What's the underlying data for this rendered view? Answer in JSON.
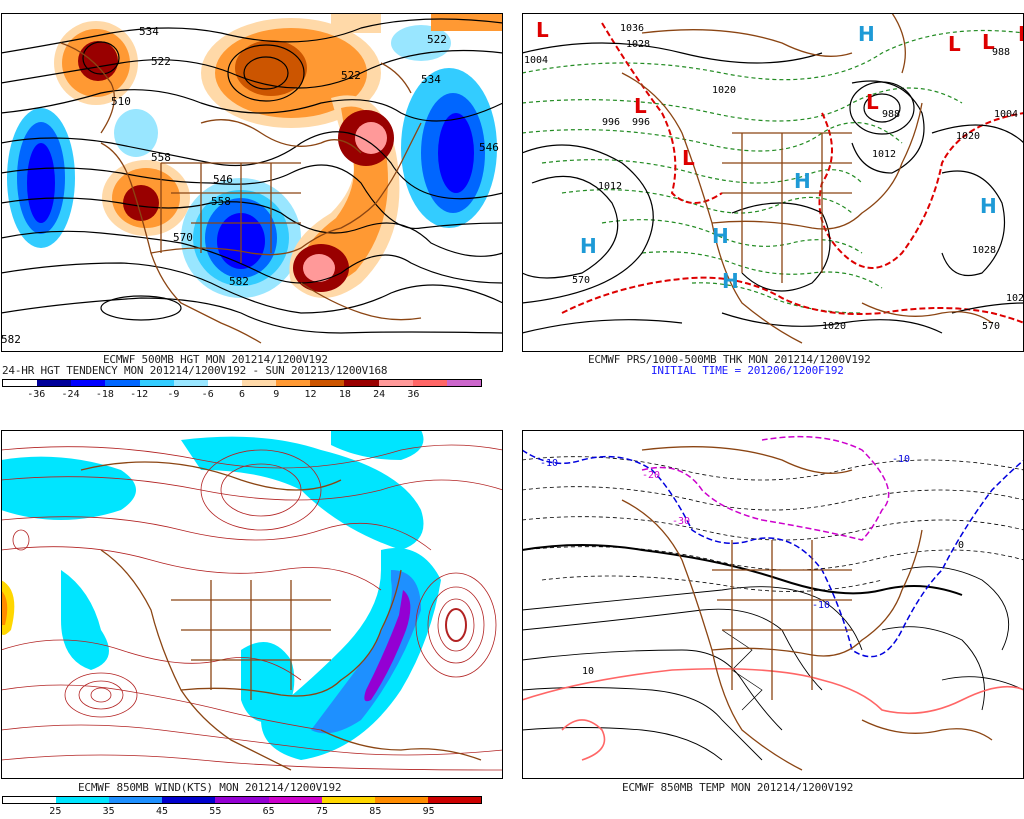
{
  "panels": [
    {
      "id": "hgt",
      "caption1": "ECMWF 500MB HGT MON 201214/1200V192",
      "caption2": "24-HR HGT TENDENCY MON 201214/1200V192 - SUN 201213/1200V168",
      "legend_labels": [
        "-36",
        "-24",
        "-18",
        "-12",
        "-9",
        "-6",
        "6",
        "9",
        "12",
        "18",
        "24",
        "36"
      ],
      "legend_colors": [
        "#ffffff",
        "#000099",
        "#0000ff",
        "#0066ff",
        "#33ccff",
        "#99e6ff",
        "#ffffff",
        "#ffd9a8",
        "#ff9933",
        "#cc5500",
        "#990000",
        "#ff9999",
        "#ff6666",
        "#cc66cc"
      ],
      "contour_labels": [
        "534",
        "522",
        "510",
        "522",
        "546",
        "558",
        "570",
        "582",
        "534",
        "546",
        "522",
        "582",
        "558"
      ]
    },
    {
      "id": "prs",
      "caption1": "ECMWF PRS/1000-500MB THK MON 201214/1200V192",
      "caption2": "INITIAL TIME = 201206/1200F192",
      "highs": [
        "H",
        "H",
        "H",
        "H",
        "H",
        "H"
      ],
      "lows": [
        "L",
        "L",
        "L",
        "L",
        "L",
        "L",
        "L"
      ],
      "contour_labels": [
        "1004",
        "1036",
        "1028",
        "1020",
        "1012",
        "996",
        "988",
        "1004",
        "1012",
        "1020",
        "1028",
        "570",
        "1020",
        "102",
        "570",
        "996",
        "988"
      ]
    },
    {
      "id": "wind",
      "caption1": "ECMWF 850MB WIND(KTS) MON 201214/1200V192",
      "legend_labels": [
        "25",
        "35",
        "45",
        "55",
        "65",
        "75",
        "85",
        "95"
      ],
      "legend_colors": [
        "#ffffff",
        "#00e5ff",
        "#1e90ff",
        "#0000cd",
        "#9400d3",
        "#cc00cc",
        "#ffd700",
        "#ff8c00",
        "#cc0000"
      ]
    },
    {
      "id": "temp",
      "caption1": "ECMWF 850MB TEMP MON 201214/1200V192",
      "contour_labels": [
        "-10",
        "-20",
        "-30",
        "-10",
        "10",
        "0",
        "-10"
      ]
    }
  ],
  "colors": {
    "coast": "#8b4513",
    "contour": "#000000",
    "thickness_green": "#228b22",
    "thickness_red": "#dd0000",
    "pressure_high": "#1e9ad6",
    "pressure_low": "#dd0000",
    "streamline": "#b22222",
    "freezing_blue": "#0000dd",
    "temp_magenta": "#cc00cc",
    "temp_pink": "#ff6666"
  }
}
